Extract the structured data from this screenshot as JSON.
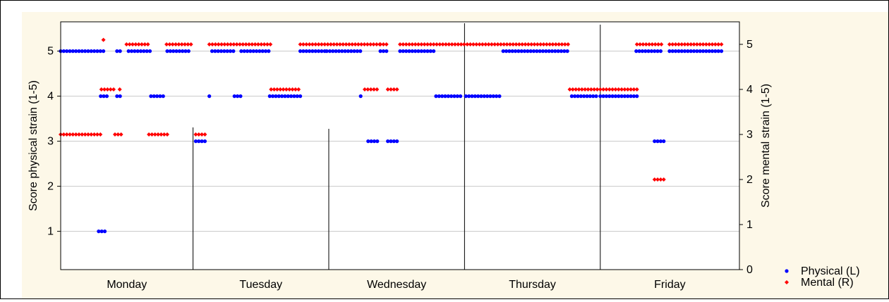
{
  "chart_data": {
    "type": "scatter",
    "y_left_label": "Score physical strain (1-5)",
    "y_right_label": "Score mental strain (1-5)",
    "y_left_ticks": [
      1,
      2,
      3,
      4,
      5
    ],
    "y_right_ticks": [
      0,
      1,
      2,
      3,
      4,
      5
    ],
    "y_left_range": [
      0.15,
      5.65
    ],
    "y_right_range": [
      0,
      5.5
    ],
    "grid": "horizontal",
    "legend_position": "bottom-right",
    "x_range": [
      0,
      100
    ],
    "days": [
      {
        "label": "Monday",
        "start": 0,
        "end": 19.5
      },
      {
        "label": "Tuesday",
        "start": 19.5,
        "end": 39.5
      },
      {
        "label": "Wednesday",
        "start": 39.5,
        "end": 59.5
      },
      {
        "label": "Thursday",
        "start": 59.5,
        "end": 79.5
      },
      {
        "label": "Friday",
        "start": 79.5,
        "end": 100
      }
    ],
    "series": [
      {
        "name": "Physical (L)",
        "axis": "left",
        "color": "#0000ff",
        "marker": "circle",
        "segments": [
          {
            "x0": 0.0,
            "x1": 6.5,
            "y": 5
          },
          {
            "x0": 5.9,
            "x1": 7.0,
            "y": 4
          },
          {
            "x0": 8.3,
            "x1": 8.8,
            "y": 5
          },
          {
            "x0": 8.3,
            "x1": 8.8,
            "y": 4
          },
          {
            "x0": 5.6,
            "x1": 6.6,
            "y": 1
          },
          {
            "x0": 10.0,
            "x1": 13.2,
            "y": 5
          },
          {
            "x0": 13.3,
            "x1": 15.4,
            "y": 4
          },
          {
            "x0": 15.7,
            "x1": 19.2,
            "y": 5
          },
          {
            "x0": 19.9,
            "x1": 21.4,
            "y": 3
          },
          {
            "x0": 21.9,
            "x1": 21.9,
            "y": 4
          },
          {
            "x0": 22.3,
            "x1": 25.5,
            "y": 5
          },
          {
            "x0": 25.6,
            "x1": 26.6,
            "y": 4
          },
          {
            "x0": 26.6,
            "x1": 30.7,
            "y": 5
          },
          {
            "x0": 30.8,
            "x1": 35.3,
            "y": 4
          },
          {
            "x0": 35.3,
            "x1": 39.1,
            "y": 5
          },
          {
            "x0": 39.2,
            "x1": 44.3,
            "y": 5
          },
          {
            "x0": 44.2,
            "x1": 44.2,
            "y": 4
          },
          {
            "x0": 45.3,
            "x1": 47.0,
            "y": 3
          },
          {
            "x0": 47.1,
            "x1": 48.0,
            "y": 5
          },
          {
            "x0": 48.2,
            "x1": 49.8,
            "y": 3
          },
          {
            "x0": 50.0,
            "x1": 55.2,
            "y": 5
          },
          {
            "x0": 55.3,
            "x1": 59.2,
            "y": 4
          },
          {
            "x0": 59.7,
            "x1": 65.0,
            "y": 4
          },
          {
            "x0": 65.2,
            "x1": 75.0,
            "y": 5
          },
          {
            "x0": 75.3,
            "x1": 79.3,
            "y": 4
          },
          {
            "x0": 79.5,
            "x1": 84.9,
            "y": 4
          },
          {
            "x0": 84.8,
            "x1": 88.7,
            "y": 5
          },
          {
            "x0": 87.5,
            "x1": 88.9,
            "y": 3
          },
          {
            "x0": 89.7,
            "x1": 97.7,
            "y": 5
          }
        ]
      },
      {
        "name": "Mental (R)",
        "axis": "right",
        "color": "#ff0000",
        "marker": "diamond",
        "segments": [
          {
            "x0": 0.0,
            "x1": 6.0,
            "y": 3
          },
          {
            "x0": 6.3,
            "x1": 6.3,
            "y": 5.1
          },
          {
            "x0": 6.0,
            "x1": 8.1,
            "y": 4
          },
          {
            "x0": 8.7,
            "x1": 8.7,
            "y": 4
          },
          {
            "x0": 8.0,
            "x1": 9.3,
            "y": 3
          },
          {
            "x0": 9.7,
            "x1": 13.0,
            "y": 5
          },
          {
            "x0": 13.0,
            "x1": 15.8,
            "y": 3
          },
          {
            "x0": 15.6,
            "x1": 19.2,
            "y": 5
          },
          {
            "x0": 19.9,
            "x1": 21.6,
            "y": 3
          },
          {
            "x0": 21.9,
            "x1": 31.0,
            "y": 5
          },
          {
            "x0": 31.0,
            "x1": 35.3,
            "y": 4
          },
          {
            "x0": 35.3,
            "x1": 47.0,
            "y": 5
          },
          {
            "x0": 44.8,
            "x1": 46.8,
            "y": 4
          },
          {
            "x0": 47.1,
            "x1": 48.2,
            "y": 5
          },
          {
            "x0": 48.2,
            "x1": 49.7,
            "y": 4
          },
          {
            "x0": 50.0,
            "x1": 75.0,
            "y": 5
          },
          {
            "x0": 75.0,
            "x1": 84.9,
            "y": 4
          },
          {
            "x0": 84.9,
            "x1": 88.7,
            "y": 5
          },
          {
            "x0": 87.5,
            "x1": 89.2,
            "y": 2
          },
          {
            "x0": 89.7,
            "x1": 97.7,
            "y": 5
          }
        ]
      }
    ]
  }
}
